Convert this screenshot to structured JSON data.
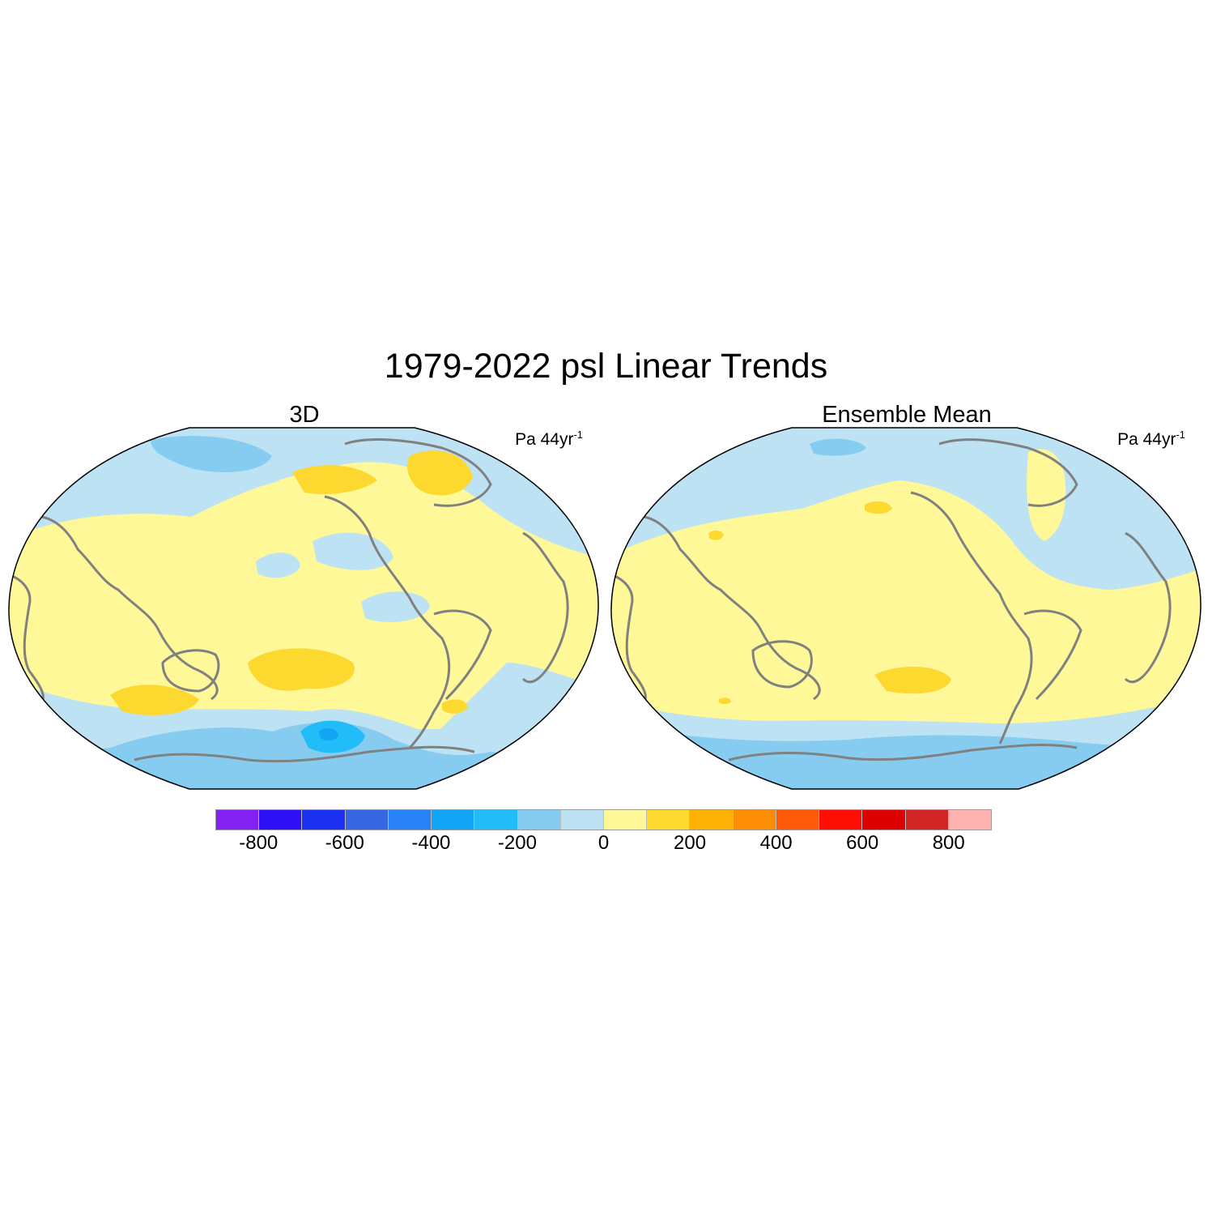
{
  "title": "1979-2022 psl Linear Trends",
  "panels": [
    {
      "title": "3D",
      "units_base": "Pa 44yr",
      "units_exp": "-1"
    },
    {
      "title": "Ensemble Mean",
      "units_base": "Pa 44yr",
      "units_exp": "-1"
    }
  ],
  "colorbar": {
    "colors": [
      "#8221f0",
      "#2d10f5",
      "#1c31f0",
      "#3666e0",
      "#2882f5",
      "#12a4f5",
      "#22bcf8",
      "#86ccf0",
      "#bde2f3",
      "#fef899",
      "#fdd930",
      "#fdb104",
      "#fd8d05",
      "#fd5908",
      "#fd0f06",
      "#dd0201",
      "#d12424",
      "#feb3b1"
    ],
    "labels": [
      "-800",
      "-600",
      "-400",
      "-200",
      "0",
      "200",
      "400",
      "600",
      "800"
    ],
    "levels": [
      -900,
      -800,
      -700,
      -600,
      -500,
      -400,
      -300,
      -200,
      -100,
      0,
      100,
      200,
      300,
      400,
      500,
      600,
      700,
      800,
      900
    ]
  },
  "colors": {
    "coast": "#808080",
    "map_border": "#000000"
  }
}
